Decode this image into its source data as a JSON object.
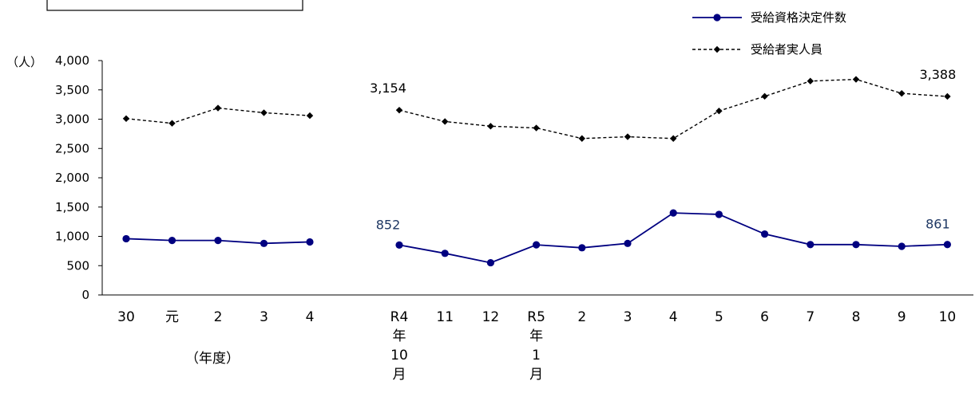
{
  "chart_data": {
    "type": "line",
    "y_unit_label": "（人）",
    "x_unit_label": "（年度）",
    "ylim": [
      0,
      4000
    ],
    "yticks": [
      "0",
      "500",
      "1,000",
      "1,500",
      "2,000",
      "2,500",
      "3,000",
      "3,500",
      "4,000"
    ],
    "grid": false,
    "legend_position": "top-right",
    "categories": [
      "30",
      "元",
      "2",
      "3",
      "4",
      "R4年10月",
      "11",
      "12",
      "R5年1月",
      "2",
      "3",
      "4",
      "5",
      "6",
      "7",
      "8",
      "9",
      "10"
    ],
    "category_tick_lines": [
      [
        "30"
      ],
      [
        "元"
      ],
      [
        "2"
      ],
      [
        "3"
      ],
      [
        "4"
      ],
      [
        "R4",
        "年",
        "10",
        "月"
      ],
      [
        "11"
      ],
      [
        "12"
      ],
      [
        "R5",
        "年",
        "1",
        "月"
      ],
      [
        "2"
      ],
      [
        "3"
      ],
      [
        "4"
      ],
      [
        "5"
      ],
      [
        "6"
      ],
      [
        "7"
      ],
      [
        "8"
      ],
      [
        "9"
      ],
      [
        "10"
      ]
    ],
    "series": [
      {
        "name": "受給資格決定件数",
        "color": "#000080",
        "style": "solid",
        "marker": "circle",
        "values": [
          960,
          930,
          930,
          880,
          905,
          852,
          710,
          550,
          855,
          805,
          880,
          1400,
          1375,
          1040,
          860,
          860,
          830,
          861
        ]
      },
      {
        "name": "受給者実人員",
        "color": "#000000",
        "style": "dashed",
        "marker": "diamond",
        "values": [
          3010,
          2930,
          3190,
          3110,
          3060,
          3154,
          2960,
          2880,
          2850,
          2670,
          2700,
          2670,
          3140,
          3390,
          3650,
          3680,
          3440,
          3388
        ]
      }
    ],
    "data_labels": [
      {
        "series": 1,
        "index": 5,
        "text": "3,154"
      },
      {
        "series": 1,
        "index": 17,
        "text": "3,388"
      },
      {
        "series": 0,
        "index": 5,
        "text": "852"
      },
      {
        "series": 0,
        "index": 17,
        "text": "861"
      }
    ],
    "annotation_color": "#1F3864"
  }
}
